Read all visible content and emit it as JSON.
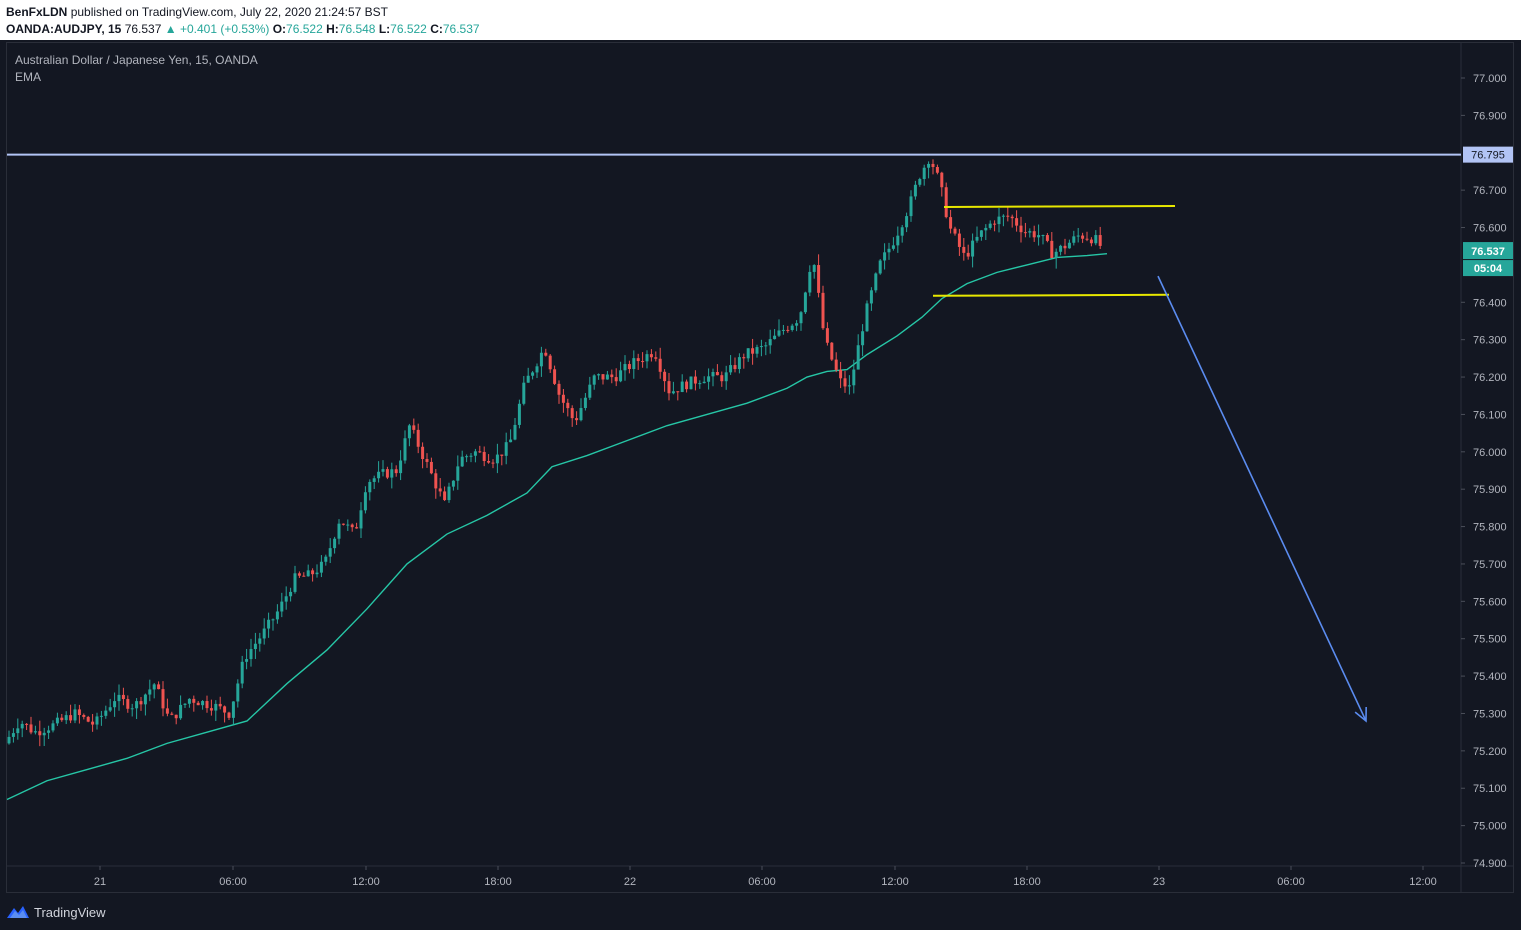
{
  "header": {
    "author": "BenFxLDN",
    "published_text": "published on TradingView.com, July 22, 2020 21:24:57 BST",
    "symbol": "OANDA:AUDJPY, 15",
    "last": "76.537",
    "change": "▲ +0.401 (+0.53%)",
    "o_label": "O:",
    "o_value": "76.522",
    "h_label": "H:",
    "h_value": "76.548",
    "l_label": "L:",
    "l_value": "76.522",
    "c_label": "C:",
    "c_value": "76.537"
  },
  "legend": {
    "instrument": "Australian Dollar / Japanese Yen, 15, OANDA",
    "indicator": "EMA"
  },
  "footer": {
    "brand": "TradingView",
    "logo_icon": "tradingview-logo-icon"
  },
  "colors": {
    "background": "#131722",
    "up": "#26a69a",
    "down": "#ef5350",
    "ema": "#26c6a6",
    "resistance_line": "#b2c4f5",
    "range_lines": "#e8e800",
    "arrow": "#5b8cf0"
  },
  "chart_data": {
    "type": "candlestick",
    "x_ticks": [
      "21",
      "06:00",
      "12:00",
      "18:00",
      "22",
      "06:00",
      "12:00",
      "18:00",
      "23",
      "06:00",
      "12:00"
    ],
    "y_ticks": [
      "77.000",
      "76.900",
      "76.700",
      "76.600",
      "76.400",
      "76.300",
      "76.200",
      "76.100",
      "76.000",
      "75.900",
      "75.800",
      "75.700",
      "75.600",
      "75.500",
      "75.400",
      "75.300",
      "75.200",
      "75.100",
      "75.000",
      "74.900"
    ],
    "ylim": [
      74.9,
      77.0
    ],
    "current_price_label": "76.537",
    "countdown_label": "05:04",
    "horizontal_level": {
      "value": 76.795,
      "label": "76.795"
    },
    "range_top": 76.655,
    "range_bottom": 76.42,
    "projection": {
      "from": 76.47,
      "to": 75.28
    },
    "price_path": [
      [
        0,
        75.22
      ],
      [
        15,
        75.28
      ],
      [
        30,
        75.25
      ],
      [
        50,
        75.27
      ],
      [
        70,
        75.3
      ],
      [
        90,
        75.27
      ],
      [
        110,
        75.34
      ],
      [
        130,
        75.32
      ],
      [
        150,
        75.38
      ],
      [
        165,
        75.28
      ],
      [
        185,
        75.34
      ],
      [
        210,
        75.32
      ],
      [
        225,
        75.3
      ],
      [
        240,
        75.45
      ],
      [
        260,
        75.52
      ],
      [
        275,
        75.58
      ],
      [
        290,
        75.66
      ],
      [
        305,
        75.67
      ],
      [
        320,
        75.7
      ],
      [
        335,
        75.82
      ],
      [
        350,
        75.78
      ],
      [
        362,
        75.92
      ],
      [
        378,
        75.94
      ],
      [
        392,
        75.95
      ],
      [
        405,
        76.07
      ],
      [
        420,
        75.98
      ],
      [
        440,
        75.86
      ],
      [
        455,
        75.98
      ],
      [
        470,
        76.0
      ],
      [
        490,
        75.98
      ],
      [
        505,
        76.02
      ],
      [
        520,
        76.18
      ],
      [
        540,
        76.28
      ],
      [
        555,
        76.15
      ],
      [
        570,
        76.08
      ],
      [
        590,
        76.2
      ],
      [
        610,
        76.2
      ],
      [
        630,
        76.24
      ],
      [
        650,
        76.27
      ],
      [
        665,
        76.16
      ],
      [
        680,
        76.18
      ],
      [
        700,
        76.2
      ],
      [
        720,
        76.2
      ],
      [
        740,
        76.26
      ],
      [
        760,
        76.28
      ],
      [
        780,
        76.33
      ],
      [
        795,
        76.36
      ],
      [
        808,
        76.53
      ],
      [
        820,
        76.3
      ],
      [
        835,
        76.19
      ],
      [
        845,
        76.17
      ],
      [
        860,
        76.36
      ],
      [
        875,
        76.5
      ],
      [
        890,
        76.57
      ],
      [
        905,
        76.66
      ],
      [
        915,
        76.74
      ],
      [
        925,
        76.79
      ],
      [
        935,
        76.72
      ],
      [
        945,
        76.6
      ],
      [
        960,
        76.52
      ],
      [
        975,
        76.58
      ],
      [
        990,
        76.62
      ],
      [
        1005,
        76.63
      ],
      [
        1020,
        76.59
      ],
      [
        1035,
        76.58
      ],
      [
        1048,
        76.53
      ],
      [
        1060,
        76.55
      ],
      [
        1075,
        76.58
      ],
      [
        1090,
        76.57
      ],
      [
        1100,
        76.537
      ]
    ],
    "ema_path": [
      [
        0,
        75.07
      ],
      [
        40,
        75.12
      ],
      [
        80,
        75.15
      ],
      [
        120,
        75.18
      ],
      [
        160,
        75.22
      ],
      [
        200,
        75.25
      ],
      [
        240,
        75.28
      ],
      [
        280,
        75.38
      ],
      [
        320,
        75.47
      ],
      [
        360,
        75.58
      ],
      [
        400,
        75.7
      ],
      [
        440,
        75.78
      ],
      [
        480,
        75.83
      ],
      [
        520,
        75.89
      ],
      [
        545,
        75.96
      ],
      [
        580,
        75.99
      ],
      [
        620,
        76.03
      ],
      [
        660,
        76.07
      ],
      [
        700,
        76.1
      ],
      [
        740,
        76.13
      ],
      [
        780,
        76.17
      ],
      [
        800,
        76.2
      ],
      [
        820,
        76.215
      ],
      [
        840,
        76.22
      ],
      [
        860,
        76.26
      ],
      [
        890,
        76.31
      ],
      [
        915,
        76.36
      ],
      [
        935,
        76.41
      ],
      [
        960,
        76.45
      ],
      [
        990,
        76.48
      ],
      [
        1020,
        76.5
      ],
      [
        1050,
        76.52
      ],
      [
        1080,
        76.525
      ],
      [
        1100,
        76.53
      ]
    ]
  }
}
